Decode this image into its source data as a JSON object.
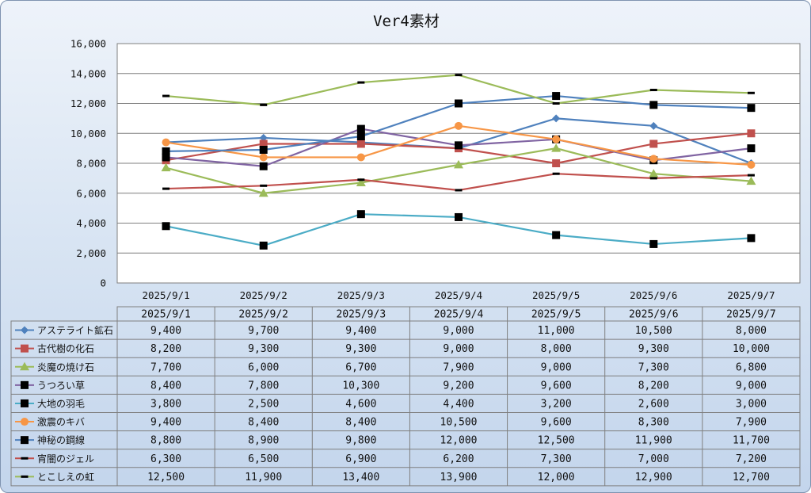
{
  "chart_data": {
    "type": "line",
    "title": "Ver4素材",
    "categories": [
      "2025/9/1",
      "2025/9/2",
      "2025/9/3",
      "2025/9/4",
      "2025/9/5",
      "2025/9/6",
      "2025/9/7"
    ],
    "ylim": [
      0,
      16000
    ],
    "yticks": [
      0,
      2000,
      4000,
      6000,
      8000,
      10000,
      12000,
      14000,
      16000
    ],
    "ytick_labels": [
      "0",
      "2,000",
      "4,000",
      "6,000",
      "8,000",
      "10,000",
      "12,000",
      "14,000",
      "16,000"
    ],
    "grid": true,
    "legend": "data-table",
    "series": [
      {
        "name": "アステライト鉱石",
        "color": "#4f81bd",
        "marker": "diamond",
        "values": [
          9400,
          9700,
          9400,
          9000,
          11000,
          10500,
          8000
        ],
        "labels": [
          "9,400",
          "9,700",
          "9,400",
          "9,000",
          "11,000",
          "10,500",
          "8,000"
        ]
      },
      {
        "name": "古代樹の化石",
        "color": "#c0504d",
        "marker": "square",
        "values": [
          8200,
          9300,
          9300,
          9000,
          8000,
          9300,
          10000
        ],
        "labels": [
          "8,200",
          "9,300",
          "9,300",
          "9,000",
          "8,000",
          "9,300",
          "10,000"
        ]
      },
      {
        "name": "炎魔の焼け石",
        "color": "#9bbb59",
        "marker": "triangle",
        "values": [
          7700,
          6000,
          6700,
          7900,
          9000,
          7300,
          6800
        ],
        "labels": [
          "7,700",
          "6,000",
          "6,700",
          "7,900",
          "9,000",
          "7,300",
          "6,800"
        ]
      },
      {
        "name": "うつろい草",
        "color": "#8064a2",
        "marker": "blacksquare",
        "values": [
          8400,
          7800,
          10300,
          9200,
          9600,
          8200,
          9000
        ],
        "labels": [
          "8,400",
          "7,800",
          "10,300",
          "9,200",
          "9,600",
          "8,200",
          "9,000"
        ]
      },
      {
        "name": "大地の羽毛",
        "color": "#4bacc6",
        "marker": "blacksquare",
        "values": [
          3800,
          2500,
          4600,
          4400,
          3200,
          2600,
          3000
        ],
        "labels": [
          "3,800",
          "2,500",
          "4,600",
          "4,400",
          "3,200",
          "2,600",
          "3,000"
        ]
      },
      {
        "name": "激震のキバ",
        "color": "#f79646",
        "marker": "circle",
        "values": [
          9400,
          8400,
          8400,
          10500,
          9600,
          8300,
          7900
        ],
        "labels": [
          "9,400",
          "8,400",
          "8,400",
          "10,500",
          "9,600",
          "8,300",
          "7,900"
        ]
      },
      {
        "name": "神秘の鋼線",
        "color": "#4f81bd",
        "marker": "blacksquare",
        "values": [
          8800,
          8900,
          9800,
          12000,
          12500,
          11900,
          11700
        ],
        "labels": [
          "8,800",
          "8,900",
          "9,800",
          "12,000",
          "12,500",
          "11,900",
          "11,700"
        ]
      },
      {
        "name": "宵闇のジェル",
        "color": "#c0504d",
        "marker": "dash",
        "values": [
          6300,
          6500,
          6900,
          6200,
          7300,
          7000,
          7200
        ],
        "labels": [
          "6,300",
          "6,500",
          "6,900",
          "6,200",
          "7,300",
          "7,000",
          "7,200"
        ]
      },
      {
        "name": "とこしえの虹",
        "color": "#9bbb59",
        "marker": "dash",
        "values": [
          12500,
          11900,
          13400,
          13900,
          12000,
          12900,
          12700
        ],
        "labels": [
          "12,500",
          "11,900",
          "13,400",
          "13,900",
          "12,000",
          "12,900",
          "12,700"
        ]
      }
    ]
  }
}
